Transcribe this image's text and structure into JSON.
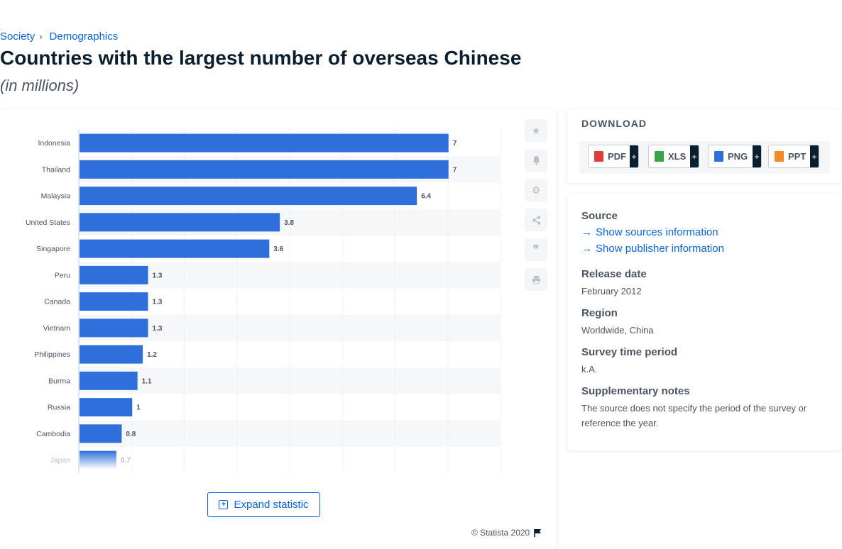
{
  "breadcrumb": {
    "items": [
      "Society",
      "Demographics"
    ],
    "separator": "›"
  },
  "page": {
    "title": "Countries with the largest number of overseas Chinese",
    "subtitle": "(in millions)"
  },
  "chart_data": {
    "type": "bar",
    "orientation": "horizontal",
    "categories": [
      "Indonesia",
      "Thailand",
      "Malaysia",
      "United States",
      "Singapore",
      "Peru",
      "Canada",
      "Vietnam",
      "Philippines",
      "Burma",
      "Russia",
      "Cambodia",
      "Japan"
    ],
    "values": [
      7,
      7,
      6.4,
      3.8,
      3.6,
      1.3,
      1.3,
      1.3,
      1.2,
      1.1,
      1,
      0.8,
      0.7
    ],
    "value_labels": [
      "7",
      "7",
      "6.4",
      "3.8",
      "3.6",
      "1.3",
      "1.3",
      "1.3",
      "1.2",
      "1.1",
      "1",
      "0.8",
      "0.7"
    ],
    "xlim": [
      0,
      8
    ],
    "grid": true,
    "bar_color": "#2f6fdc",
    "faded_last_bar": true
  },
  "chart_tools": {
    "icons": [
      "star-icon",
      "bell-icon",
      "gear-icon",
      "share-icon",
      "quote-icon",
      "print-icon"
    ]
  },
  "expand": {
    "label": "Expand statistic"
  },
  "copyright": {
    "text": "© Statista 2020"
  },
  "download": {
    "title": "DOWNLOAD",
    "buttons": [
      {
        "label": "PDF",
        "color": "#e23b3b"
      },
      {
        "label": "XLS",
        "color": "#3aa34a"
      },
      {
        "label": "PNG",
        "color": "#2f6fdc"
      },
      {
        "label": "PPT",
        "color": "#f08a24"
      }
    ],
    "plus": "+"
  },
  "info": {
    "source_heading": "Source",
    "show_sources": "Show sources information",
    "show_publisher": "Show publisher information",
    "release_heading": "Release date",
    "release_value": "February 2012",
    "region_heading": "Region",
    "region_value": "Worldwide, China",
    "survey_heading": "Survey time period",
    "survey_value": "k.A.",
    "notes_heading": "Supplementary notes",
    "notes_value": "The source does not specify the period of the survey or reference the year."
  }
}
